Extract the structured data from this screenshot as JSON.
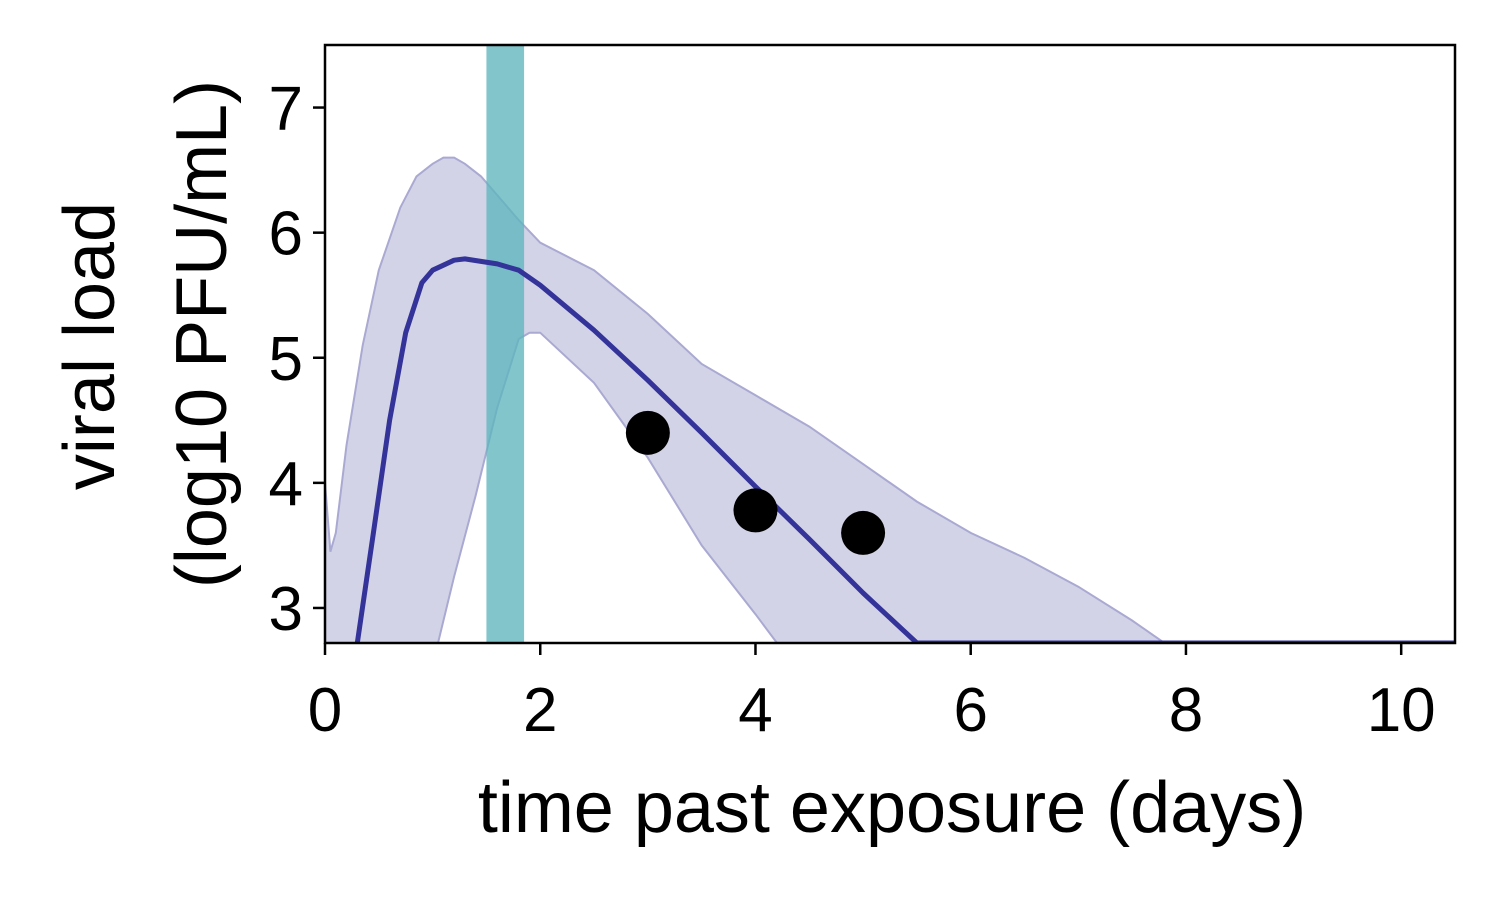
{
  "chart_data": {
    "type": "line",
    "xlabel": "time past exposure (days)",
    "ylabel_lines": [
      "viral load",
      "(log10 PFU/mL)"
    ],
    "xlim": [
      0,
      10.5
    ],
    "ylim": [
      2.72,
      7.5
    ],
    "xticks": [
      0,
      2,
      4,
      6,
      8,
      10
    ],
    "yticks": [
      3,
      4,
      5,
      6,
      7
    ],
    "grid": false,
    "legend": "none",
    "colors": {
      "line": "#33339a",
      "band": "#b8b8d9",
      "band_edge": "#a9a9d2",
      "highlight": "#5fb6be",
      "points": "#000000"
    },
    "highlight_interval": [
      1.5,
      1.85
    ],
    "series": [
      {
        "role": "median",
        "x": [
          0.3,
          0.45,
          0.6,
          0.75,
          0.9,
          1.0,
          1.1,
          1.2,
          1.3,
          1.45,
          1.6,
          1.8,
          2.0,
          2.5,
          3.0,
          3.5,
          4.0,
          4.5,
          5.0,
          5.5,
          10.5
        ],
        "y": [
          2.72,
          3.6,
          4.5,
          5.2,
          5.6,
          5.7,
          5.74,
          5.78,
          5.79,
          5.77,
          5.75,
          5.7,
          5.58,
          5.22,
          4.82,
          4.4,
          3.97,
          3.55,
          3.12,
          2.72,
          2.72
        ]
      },
      {
        "role": "upper-bound",
        "x": [
          0.0,
          0.05,
          0.1,
          0.2,
          0.35,
          0.5,
          0.7,
          0.85,
          1.0,
          1.1,
          1.2,
          1.3,
          1.45,
          1.6,
          1.8,
          2.0,
          2.5,
          3.0,
          3.5,
          4.0,
          4.5,
          5.0,
          5.5,
          6.0,
          6.5,
          7.0,
          7.5,
          7.8,
          10.5
        ],
        "y": [
          4.0,
          3.45,
          3.6,
          4.3,
          5.1,
          5.7,
          6.2,
          6.45,
          6.55,
          6.6,
          6.6,
          6.55,
          6.45,
          6.3,
          6.1,
          5.92,
          5.7,
          5.35,
          4.95,
          4.7,
          4.45,
          4.15,
          3.85,
          3.6,
          3.4,
          3.17,
          2.9,
          2.72,
          2.72
        ]
      },
      {
        "role": "lower-bound",
        "x": [
          0.0,
          0.05,
          0.1,
          0.2,
          0.35,
          0.5,
          0.7,
          0.85,
          1.0,
          1.05,
          1.2,
          1.4,
          1.6,
          1.8,
          1.9,
          2.0,
          2.5,
          3.0,
          3.5,
          4.0,
          4.2,
          10.5
        ],
        "y": [
          2.72,
          2.72,
          2.72,
          2.72,
          2.72,
          2.72,
          2.72,
          2.72,
          2.72,
          2.72,
          3.25,
          3.9,
          4.6,
          5.15,
          5.2,
          5.2,
          4.8,
          4.2,
          3.5,
          2.95,
          2.72,
          2.72
        ]
      }
    ],
    "points": {
      "x": [
        3,
        4,
        5
      ],
      "y": [
        4.4,
        3.78,
        3.6
      ]
    }
  }
}
